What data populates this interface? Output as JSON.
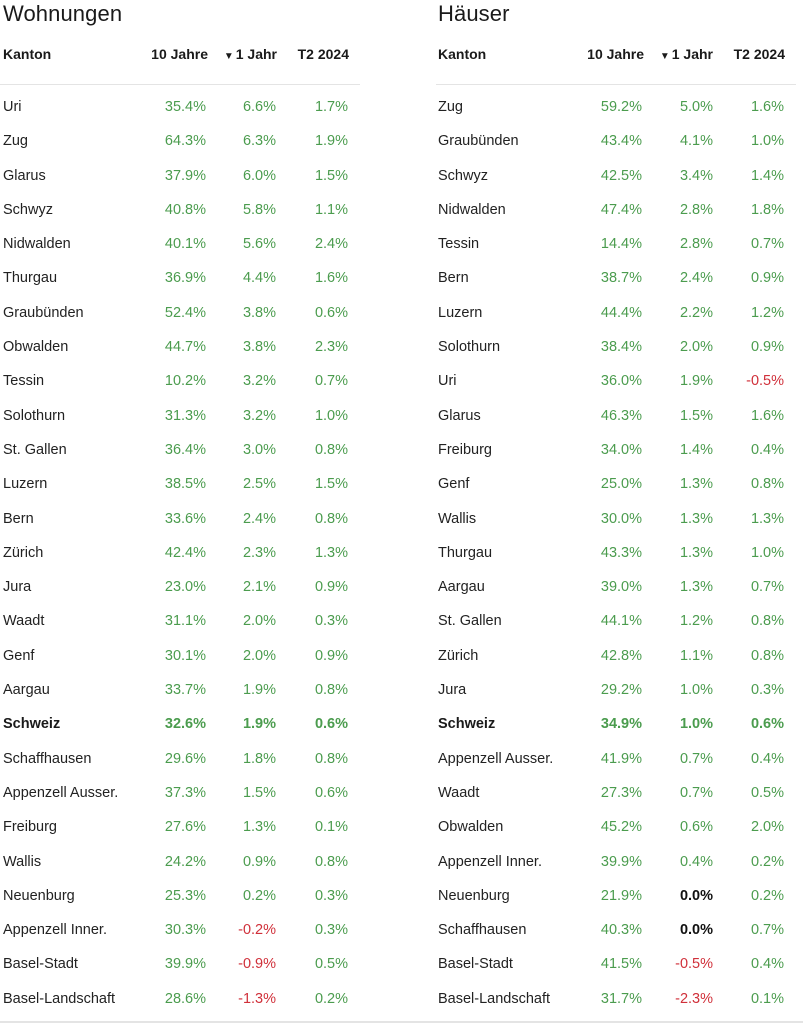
{
  "wohnungen": {
    "title": "Wohnungen",
    "headers": {
      "kanton": "Kanton",
      "zehn": "10 Jahre",
      "sort_icon": "▼",
      "eins": "1 Jahr",
      "t2": "T2 2024"
    },
    "rows": [
      {
        "name": "Uri",
        "y10": "35.4%",
        "y1": "6.6%",
        "t2": "1.7%"
      },
      {
        "name": "Zug",
        "y10": "64.3%",
        "y1": "6.3%",
        "t2": "1.9%"
      },
      {
        "name": "Glarus",
        "y10": "37.9%",
        "y1": "6.0%",
        "t2": "1.5%"
      },
      {
        "name": "Schwyz",
        "y10": "40.8%",
        "y1": "5.8%",
        "t2": "1.1%"
      },
      {
        "name": "Nidwalden",
        "y10": "40.1%",
        "y1": "5.6%",
        "t2": "2.4%"
      },
      {
        "name": "Thurgau",
        "y10": "36.9%",
        "y1": "4.4%",
        "t2": "1.6%"
      },
      {
        "name": "Graubünden",
        "y10": "52.4%",
        "y1": "3.8%",
        "t2": "0.6%"
      },
      {
        "name": "Obwalden",
        "y10": "44.7%",
        "y1": "3.8%",
        "t2": "2.3%"
      },
      {
        "name": "Tessin",
        "y10": "10.2%",
        "y1": "3.2%",
        "t2": "0.7%"
      },
      {
        "name": "Solothurn",
        "y10": "31.3%",
        "y1": "3.2%",
        "t2": "1.0%"
      },
      {
        "name": "St. Gallen",
        "y10": "36.4%",
        "y1": "3.0%",
        "t2": "0.8%"
      },
      {
        "name": "Luzern",
        "y10": "38.5%",
        "y1": "2.5%",
        "t2": "1.5%"
      },
      {
        "name": "Bern",
        "y10": "33.6%",
        "y1": "2.4%",
        "t2": "0.8%"
      },
      {
        "name": "Zürich",
        "y10": "42.4%",
        "y1": "2.3%",
        "t2": "1.3%"
      },
      {
        "name": "Jura",
        "y10": "23.0%",
        "y1": "2.1%",
        "t2": "0.9%"
      },
      {
        "name": "Waadt",
        "y10": "31.1%",
        "y1": "2.0%",
        "t2": "0.3%"
      },
      {
        "name": "Genf",
        "y10": "30.1%",
        "y1": "2.0%",
        "t2": "0.9%"
      },
      {
        "name": "Aargau",
        "y10": "33.7%",
        "y1": "1.9%",
        "t2": "0.8%"
      },
      {
        "name": "Schweiz",
        "y10": "32.6%",
        "y1": "1.9%",
        "t2": "0.6%",
        "bold": true
      },
      {
        "name": "Schaffhausen",
        "y10": "29.6%",
        "y1": "1.8%",
        "t2": "0.8%"
      },
      {
        "name": "Appenzell Ausser.",
        "y10": "37.3%",
        "y1": "1.5%",
        "t2": "0.6%"
      },
      {
        "name": "Freiburg",
        "y10": "27.6%",
        "y1": "1.3%",
        "t2": "0.1%"
      },
      {
        "name": "Wallis",
        "y10": "24.2%",
        "y1": "0.9%",
        "t2": "0.8%"
      },
      {
        "name": "Neuenburg",
        "y10": "25.3%",
        "y1": "0.2%",
        "t2": "0.3%"
      },
      {
        "name": "Appenzell Inner.",
        "y10": "30.3%",
        "y1": "-0.2%",
        "t2": "0.3%"
      },
      {
        "name": "Basel-Stadt",
        "y10": "39.9%",
        "y1": "-0.9%",
        "t2": "0.5%"
      },
      {
        "name": "Basel-Landschaft",
        "y10": "28.6%",
        "y1": "-1.3%",
        "t2": "0.2%"
      }
    ]
  },
  "haeuser": {
    "title": "Häuser",
    "headers": {
      "kanton": "Kanton",
      "zehn": "10 Jahre",
      "sort_icon": "▼",
      "eins": "1 Jahr",
      "t2": "T2 2024"
    },
    "rows": [
      {
        "name": "Zug",
        "y10": "59.2%",
        "y1": "5.0%",
        "t2": "1.6%"
      },
      {
        "name": "Graubünden",
        "y10": "43.4%",
        "y1": "4.1%",
        "t2": "1.0%"
      },
      {
        "name": "Schwyz",
        "y10": "42.5%",
        "y1": "3.4%",
        "t2": "1.4%"
      },
      {
        "name": "Nidwalden",
        "y10": "47.4%",
        "y1": "2.8%",
        "t2": "1.8%"
      },
      {
        "name": "Tessin",
        "y10": "14.4%",
        "y1": "2.8%",
        "t2": "0.7%"
      },
      {
        "name": "Bern",
        "y10": "38.7%",
        "y1": "2.4%",
        "t2": "0.9%"
      },
      {
        "name": "Luzern",
        "y10": "44.4%",
        "y1": "2.2%",
        "t2": "1.2%"
      },
      {
        "name": "Solothurn",
        "y10": "38.4%",
        "y1": "2.0%",
        "t2": "0.9%"
      },
      {
        "name": "Uri",
        "y10": "36.0%",
        "y1": "1.9%",
        "t2": "-0.5%"
      },
      {
        "name": "Glarus",
        "y10": "46.3%",
        "y1": "1.5%",
        "t2": "1.6%"
      },
      {
        "name": "Freiburg",
        "y10": "34.0%",
        "y1": "1.4%",
        "t2": "0.4%"
      },
      {
        "name": "Genf",
        "y10": "25.0%",
        "y1": "1.3%",
        "t2": "0.8%"
      },
      {
        "name": "Wallis",
        "y10": "30.0%",
        "y1": "1.3%",
        "t2": "1.3%"
      },
      {
        "name": "Thurgau",
        "y10": "43.3%",
        "y1": "1.3%",
        "t2": "1.0%"
      },
      {
        "name": "Aargau",
        "y10": "39.0%",
        "y1": "1.3%",
        "t2": "0.7%"
      },
      {
        "name": "St. Gallen",
        "y10": "44.1%",
        "y1": "1.2%",
        "t2": "0.8%"
      },
      {
        "name": "Zürich",
        "y10": "42.8%",
        "y1": "1.1%",
        "t2": "0.8%"
      },
      {
        "name": "Jura",
        "y10": "29.2%",
        "y1": "1.0%",
        "t2": "0.3%"
      },
      {
        "name": "Schweiz",
        "y10": "34.9%",
        "y1": "1.0%",
        "t2": "0.6%",
        "bold": true
      },
      {
        "name": "Appenzell Ausser.",
        "y10": "41.9%",
        "y1": "0.7%",
        "t2": "0.4%"
      },
      {
        "name": "Waadt",
        "y10": "27.3%",
        "y1": "0.7%",
        "t2": "0.5%"
      },
      {
        "name": "Obwalden",
        "y10": "45.2%",
        "y1": "0.6%",
        "t2": "2.0%"
      },
      {
        "name": "Appenzell Inner.",
        "y10": "39.9%",
        "y1": "0.4%",
        "t2": "0.2%"
      },
      {
        "name": "Neuenburg",
        "y10": "21.9%",
        "y1": "0.0%",
        "t2": "0.2%"
      },
      {
        "name": "Schaffhausen",
        "y10": "40.3%",
        "y1": "0.0%",
        "t2": "0.7%"
      },
      {
        "name": "Basel-Stadt",
        "y10": "41.5%",
        "y1": "-0.5%",
        "t2": "0.4%"
      },
      {
        "name": "Basel-Landschaft",
        "y10": "31.7%",
        "y1": "-2.3%",
        "t2": "0.1%"
      }
    ]
  },
  "colors": {
    "positive": "#4b9c4e",
    "negative": "#d0303a",
    "zero": "#111111"
  }
}
